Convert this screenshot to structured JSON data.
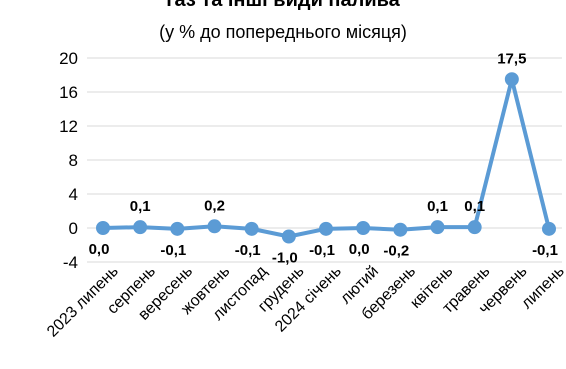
{
  "chart_data": {
    "type": "line",
    "title": "газ та інші види палива",
    "subtitle": "(у % до попереднього місяця)",
    "categories": [
      "2023 липень",
      "серпень",
      "вересень",
      "жовтень",
      "листопад",
      "грудень",
      "2024 січень",
      "лютий",
      "березень",
      "квітень",
      "травень",
      "червень",
      "липень"
    ],
    "series": [
      {
        "name": "",
        "values": [
          0.0,
          0.1,
          -0.1,
          0.2,
          -0.1,
          -1.0,
          -0.1,
          0.0,
          -0.2,
          0.1,
          0.1,
          17.5,
          -0.1
        ]
      }
    ],
    "data_labels": [
      "0,0",
      "0,1",
      "-0,1",
      "0,2",
      "-0,1",
      "-1,0",
      "-0,1",
      "0,0",
      "-0,2",
      "0,1",
      "0,1",
      "17,5",
      "-0,1"
    ],
    "label_placement": [
      "below",
      "above",
      "below",
      "above",
      "below",
      "below",
      "below",
      "below",
      "below",
      "above",
      "above",
      "above",
      "below"
    ],
    "yticks": [
      -4,
      0,
      4,
      8,
      12,
      16,
      20
    ],
    "ytick_labels": [
      "-4",
      "0",
      "4",
      "8",
      "12",
      "16",
      "20"
    ],
    "ylim": [
      -4,
      20
    ],
    "grid": true,
    "legend": "none",
    "colors": {
      "series": "#5b9bd5",
      "grid": "#d9d9d9"
    }
  }
}
